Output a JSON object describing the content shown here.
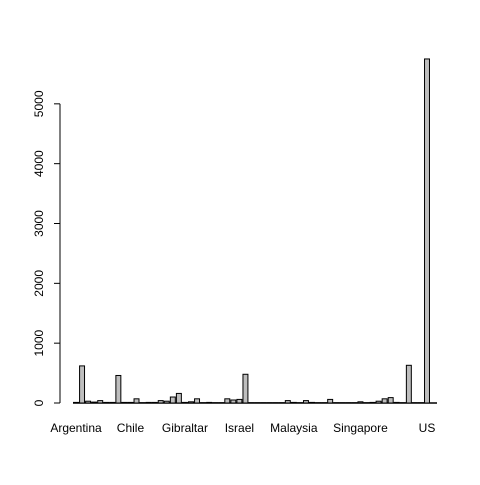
{
  "chart_data": {
    "type": "bar",
    "categories": [
      "Argentina",
      null,
      null,
      null,
      null,
      null,
      null,
      null,
      null,
      "Chile",
      null,
      null,
      null,
      null,
      null,
      null,
      null,
      null,
      "Gibraltar",
      null,
      null,
      null,
      null,
      null,
      null,
      null,
      null,
      "Israel",
      null,
      null,
      null,
      null,
      null,
      null,
      null,
      null,
      "Malaysia",
      null,
      null,
      null,
      null,
      null,
      null,
      null,
      null,
      null,
      null,
      "Singapore",
      null,
      null,
      null,
      null,
      null,
      null,
      null,
      null,
      null,
      null,
      "US"
    ],
    "values": [
      10,
      620,
      30,
      15,
      40,
      10,
      10,
      460,
      10,
      10,
      70,
      5,
      10,
      10,
      40,
      30,
      100,
      160,
      10,
      20,
      70,
      5,
      10,
      5,
      5,
      70,
      50,
      60,
      480,
      5,
      5,
      5,
      5,
      5,
      5,
      40,
      10,
      5,
      40,
      10,
      5,
      5,
      60,
      5,
      5,
      5,
      5,
      20,
      5,
      10,
      30,
      70,
      90,
      10,
      5,
      630,
      5,
      5,
      5750
    ],
    "color": "#bebebe",
    "ylim": [
      0,
      6000
    ],
    "yticks": [
      0,
      1000,
      2000,
      3000,
      4000,
      5000
    ]
  }
}
